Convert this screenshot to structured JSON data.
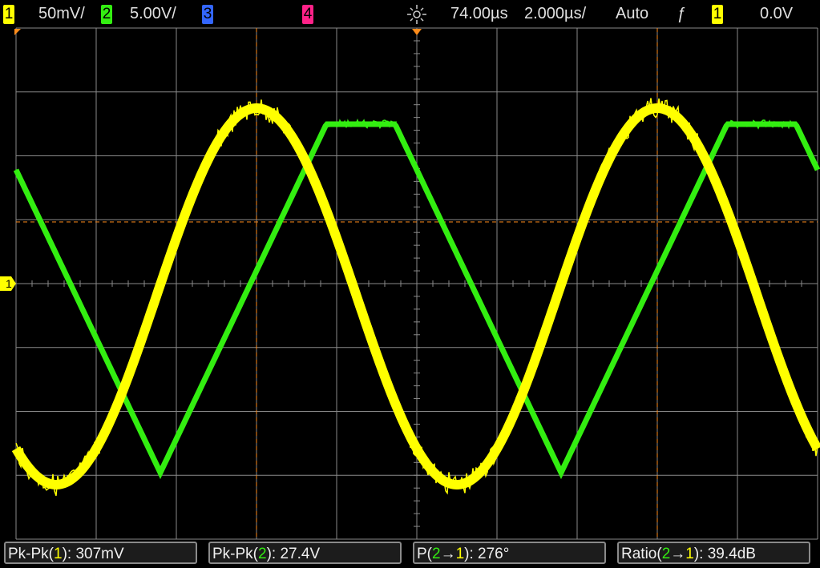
{
  "status_bar": {
    "ch1": {
      "number": "1",
      "scale": "50mV/"
    },
    "ch2": {
      "number": "2",
      "scale": "5.00V/"
    },
    "ch3": {
      "number": "3"
    },
    "ch4": {
      "number": "4"
    },
    "time": {
      "delay": "74.00µs",
      "scale": "2.000µs/"
    },
    "trigger": {
      "mode": "Auto",
      "edge": "ƒ",
      "source": "1",
      "level": "0.0V"
    }
  },
  "screen": {
    "ground_marker": "1"
  },
  "measurements": [
    {
      "prefix": "Pk-Pk(",
      "source": "1",
      "suffix": "): 307mV"
    },
    {
      "prefix": "Pk-Pk(",
      "source": "2",
      "suffix": "): 27.4V"
    },
    {
      "prefix": "P(",
      "source": "2",
      "arrow": "→",
      "target": "1",
      "suffix": "): 276°"
    },
    {
      "prefix": "Ratio(",
      "source": "2",
      "arrow": "→",
      "target": "1",
      "suffix": "): 39.4dB"
    }
  ]
}
